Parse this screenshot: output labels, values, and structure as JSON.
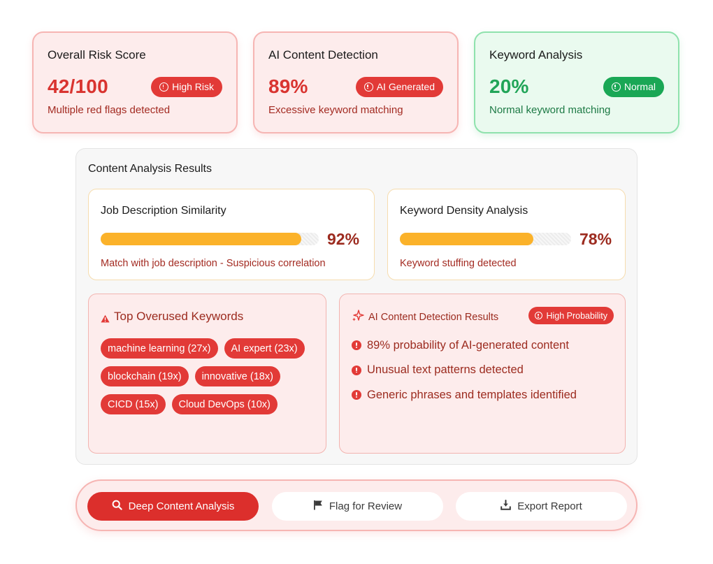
{
  "cards": [
    {
      "title": "Overall Risk Score",
      "value": "42/100",
      "badge": "High Risk",
      "subtitle": "Multiple red flags detected",
      "status": "red"
    },
    {
      "title": "AI Content Detection",
      "value": "89%",
      "badge": "AI Generated",
      "subtitle": "Excessive keyword matching",
      "status": "red"
    },
    {
      "title": "Keyword Analysis",
      "value": "20%",
      "badge": "Normal",
      "subtitle": "Normal keyword matching",
      "status": "green"
    }
  ],
  "analysis": {
    "title": "Content Analysis Results",
    "similarity": {
      "title": "Job Description Similarity",
      "percent": 92,
      "percent_label": "92%",
      "subtitle": "Match with job description - Suspicious correlation"
    },
    "density": {
      "title": "Keyword Density Analysis",
      "percent": 78,
      "percent_label": "78%",
      "subtitle": "Keyword stuffing detected"
    },
    "keywords": {
      "title": "Top Overused Keywords",
      "items": [
        "machine learning (27x)",
        "AI expert (23x)",
        "blockchain (19x)",
        "innovative (18x)",
        "CICD (15x)",
        "Cloud DevOps (10x)"
      ]
    },
    "ai_results": {
      "title": "AI Content Detection Results",
      "badge": "High Probability",
      "items": [
        "89% probability of AI-generated content",
        "Unusual text patterns detected",
        "Generic phrases and templates identified"
      ]
    }
  },
  "actions": {
    "deep_analysis": "Deep Content Analysis",
    "flag_review": "Flag for Review",
    "export_report": "Export Report"
  },
  "colors": {
    "danger": "#e23a37",
    "danger_text": "#9c2b1f",
    "success": "#1aa755",
    "progress": "#fbb22a"
  },
  "icons": [
    "info-icon",
    "warning-icon",
    "sparkle-icon",
    "alert-icon",
    "search-icon",
    "flag-icon",
    "download-icon"
  ]
}
